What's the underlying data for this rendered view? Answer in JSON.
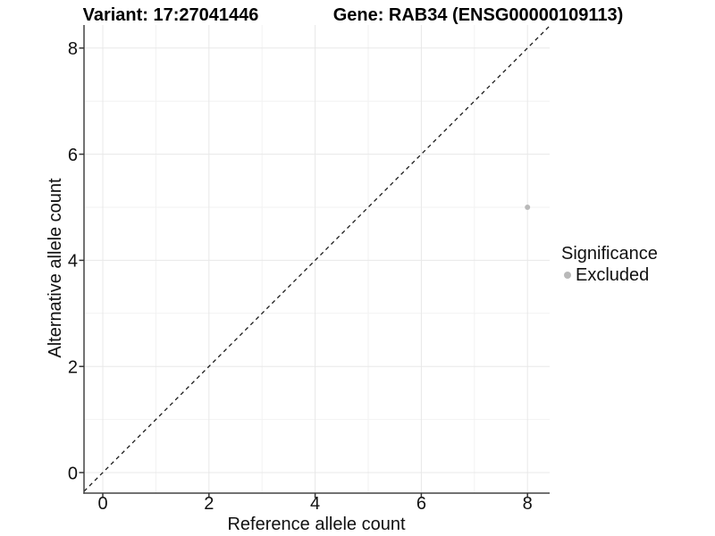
{
  "chart_data": {
    "type": "scatter",
    "titles": [
      "Variant: 17:27041446",
      "Gene: RAB34 (ENSG00000109113)"
    ],
    "xlabel": "Reference allele count",
    "ylabel": "Alternative allele count",
    "xlim": [
      -0.35,
      8.42
    ],
    "ylim": [
      -0.39,
      8.42
    ],
    "x_ticks": [
      0,
      2,
      4,
      6,
      8
    ],
    "y_ticks": [
      0,
      2,
      4,
      6,
      8
    ],
    "x_minor_ticks": [
      1,
      3,
      5,
      7
    ],
    "y_minor_ticks": [
      1,
      3,
      5,
      7
    ],
    "grid": "major+minor",
    "reference_line": {
      "type": "identity",
      "slope": 1,
      "intercept": 0,
      "style": "dashed",
      "color": "#1a1a1a"
    },
    "series": [
      {
        "name": "Excluded",
        "color": "#b9b9b9",
        "points": [
          [
            8,
            5
          ]
        ]
      }
    ],
    "legend": {
      "title": "Significance",
      "position": "right",
      "items": [
        {
          "label": "Excluded",
          "color": "#b9b9b9"
        }
      ]
    },
    "colors": {
      "axis_line": "#444444",
      "tick": "#333333",
      "text": "#111111",
      "grid_major": "#e8e8e8",
      "grid_minor": "#f2f2f2"
    }
  }
}
